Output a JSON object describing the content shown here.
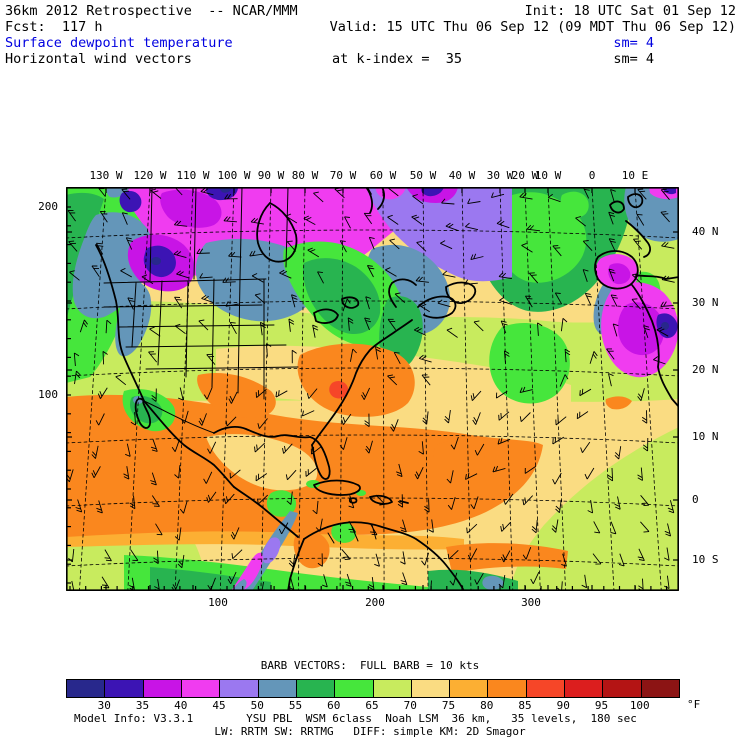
{
  "palette": {
    "navy": "#28288c",
    "indigo": "#3c14b4",
    "purple": "#c814e6",
    "magenta": "#f03cf0",
    "violet": "#9b78f0",
    "steel": "#6496b9",
    "green": "#28b450",
    "bgreen": "#46e63c",
    "ygreen": "#c8eb5e",
    "tan": "#fadc82",
    "yorange": "#fcaf33",
    "orange": "#fa871e",
    "ored": "#f64628",
    "red": "#dc1e1e",
    "dred": "#b41414",
    "maroon": "#8c1414",
    "accent_blue": "#0000e0",
    "ink": "#000000"
  },
  "header": {
    "line1_left": "36km 2012 Retrospective  -- NCAR/MMM",
    "line1_right": "Init: 18 UTC Sat 01 Sep 12",
    "line2_left": "Fcst:  117 h",
    "line2_right": "Valid: 15 UTC Thu 06 Sep 12 (09 MDT Thu 06 Sep 12)",
    "line3_left": "Surface dewpoint temperature",
    "line3_right": "sm= 4",
    "line4_left": "Horizontal wind vectors",
    "line4_mid": "at k-index =  35",
    "line4_right": "sm= 4"
  },
  "axes": {
    "top": [
      "130 W",
      "120 W",
      "110 W",
      "100 W",
      "90 W",
      "80 W",
      "70 W",
      "60 W",
      "50 W",
      "40 W",
      "30 W",
      "20 W",
      "10 W",
      "0",
      "10 E"
    ],
    "left": [
      "200",
      "100"
    ],
    "right": [
      "40 N",
      "30 N",
      "20 N",
      "10 N",
      "0",
      "10 S"
    ],
    "bottom": [
      "100",
      "200",
      "300"
    ]
  },
  "legend": {
    "caption": "BARB VECTORS:  FULL BARB = 10 kts",
    "unit": "°F",
    "tick_labels": [
      "30",
      "35",
      "40",
      "45",
      "50",
      "55",
      "60",
      "65",
      "70",
      "75",
      "80",
      "85",
      "90",
      "95",
      "100"
    ],
    "colors": [
      "#28288c",
      "#3c14b4",
      "#c814e6",
      "#f03cf0",
      "#9b78f0",
      "#6496b9",
      "#28b450",
      "#46e63c",
      "#c8eb5e",
      "#fadc82",
      "#fcaf33",
      "#fa871e",
      "#f64628",
      "#dc1e1e",
      "#b41414",
      "#8c1414"
    ]
  },
  "model_info": {
    "line1": "Model Info: V3.3.1        YSU PBL  WSM 6class  Noah LSM  36 km,   35 levels,  180 sec",
    "line2": "LW: RRTM SW: RRTMG   DIFF: simple KM: 2D Smagor"
  }
}
